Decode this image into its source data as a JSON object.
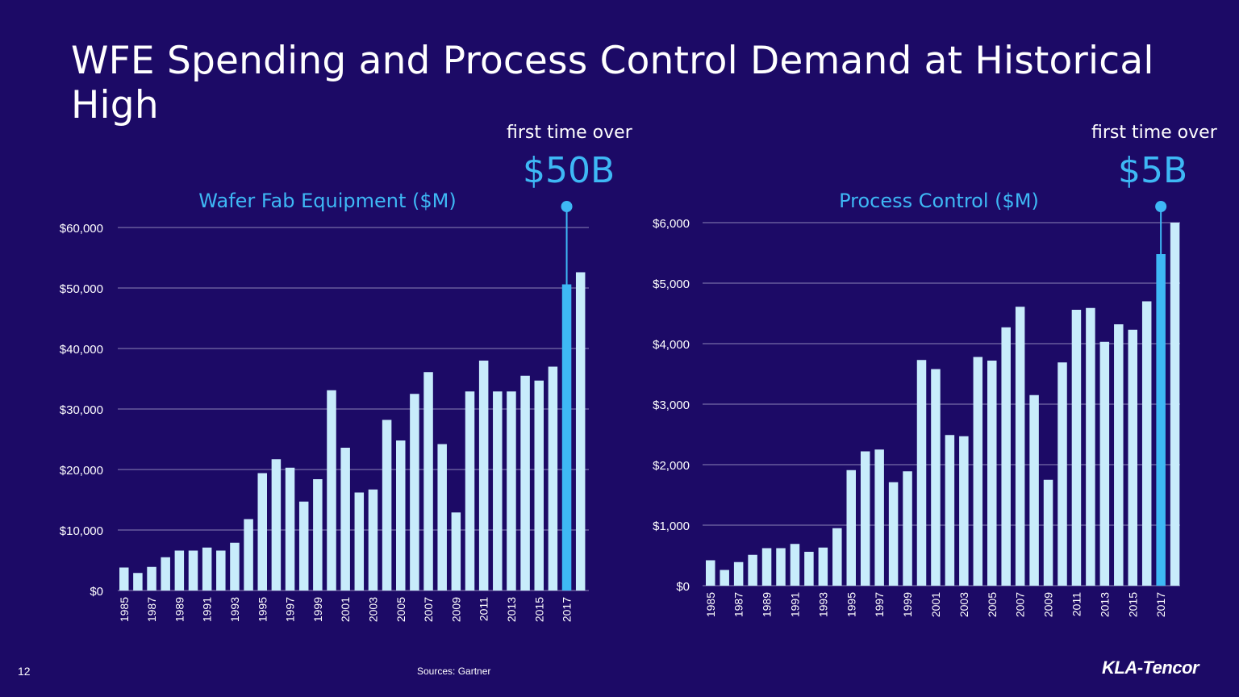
{
  "slide": {
    "title": "WFE Spending and Process Control Demand at Historical High",
    "page_number": "12",
    "source": "Sources: Gartner",
    "logo": "KLA-Tencor"
  },
  "colors": {
    "bar": "#c8ecfb",
    "highlight": "#3eb8f5",
    "background": "#1c0a66",
    "grid": "#8c84b8"
  },
  "chart_data": [
    {
      "type": "bar",
      "title": "Wafer Fab Equipment ($M)",
      "annotation_small": "first time over",
      "annotation_big": "$50B",
      "highlight_year": "2017",
      "ylim": [
        0,
        60000
      ],
      "yticks": [
        0,
        10000,
        20000,
        30000,
        40000,
        50000,
        60000
      ],
      "ytick_labels": [
        "$0",
        "$10,000",
        "$20,000",
        "$30,000",
        "$40,000",
        "$50,000",
        "$60,000"
      ],
      "xtick_labels": [
        "1985",
        "1987",
        "1989",
        "1991",
        "1993",
        "1995",
        "1997",
        "1999",
        "2001",
        "2003",
        "2005",
        "2007",
        "2009",
        "2011",
        "2013",
        "2015",
        "2017"
      ],
      "categories": [
        "1985",
        "1986",
        "1987",
        "1988",
        "1989",
        "1990",
        "1991",
        "1992",
        "1993",
        "1994",
        "1995",
        "1996",
        "1997",
        "1998",
        "1999",
        "2000",
        "2001",
        "2002",
        "2003",
        "2004",
        "2005",
        "2006",
        "2007",
        "2008",
        "2009",
        "2010",
        "2011",
        "2012",
        "2013",
        "2014",
        "2015",
        "2016",
        "2017",
        "2018"
      ],
      "values": [
        3800,
        2900,
        3900,
        5500,
        6600,
        6600,
        7100,
        6600,
        7900,
        11800,
        19400,
        21700,
        20300,
        14700,
        18400,
        33100,
        23600,
        16200,
        16700,
        28200,
        24800,
        32500,
        36100,
        24200,
        12900,
        32900,
        38000,
        32900,
        32900,
        35500,
        34700,
        37000,
        50600,
        52600
      ]
    },
    {
      "type": "bar",
      "title": "Process Control ($M)",
      "annotation_small": "first time over",
      "annotation_big": "$5B",
      "highlight_year": "2017",
      "ylim": [
        0,
        6000
      ],
      "yticks": [
        0,
        1000,
        2000,
        3000,
        4000,
        5000,
        6000
      ],
      "ytick_labels": [
        "$0",
        "$1,000",
        "$2,000",
        "$3,000",
        "$4,000",
        "$5,000",
        "$6,000"
      ],
      "xtick_labels": [
        "1985",
        "1987",
        "1989",
        "1991",
        "1993",
        "1995",
        "1997",
        "1999",
        "2001",
        "2003",
        "2005",
        "2007",
        "2009",
        "2011",
        "2013",
        "2015",
        "2017"
      ],
      "categories": [
        "1985",
        "1986",
        "1987",
        "1988",
        "1989",
        "1990",
        "1991",
        "1992",
        "1993",
        "1994",
        "1995",
        "1996",
        "1997",
        "1998",
        "1999",
        "2000",
        "2001",
        "2002",
        "2003",
        "2004",
        "2005",
        "2006",
        "2007",
        "2008",
        "2009",
        "2010",
        "2011",
        "2012",
        "2013",
        "2014",
        "2015",
        "2016",
        "2017",
        "2018"
      ],
      "values": [
        420,
        260,
        390,
        510,
        620,
        620,
        690,
        560,
        630,
        950,
        1910,
        2220,
        2250,
        1710,
        1890,
        3730,
        3580,
        2490,
        2470,
        3780,
        3720,
        4270,
        4610,
        3150,
        1750,
        3690,
        4560,
        4590,
        4030,
        4320,
        4230,
        4700,
        5480,
        6000
      ]
    }
  ]
}
